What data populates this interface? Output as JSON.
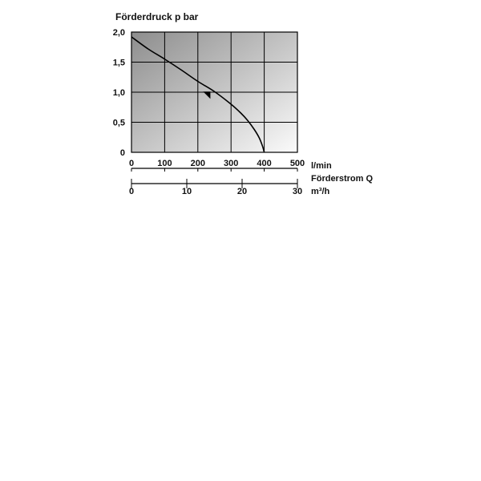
{
  "chart_data": {
    "type": "line",
    "ylabel": "Förderdruck p bar",
    "ylim": [
      0,
      2.0
    ],
    "yticks": [
      {
        "value": 0,
        "label": "0"
      },
      {
        "value": 0.5,
        "label": "0,5"
      },
      {
        "value": 1.0,
        "label": "1,0"
      },
      {
        "value": 1.5,
        "label": "1,5"
      },
      {
        "value": 2.0,
        "label": "2,0"
      }
    ],
    "xlim": [
      0,
      500
    ],
    "xticks": [
      {
        "value": 0,
        "label": "0"
      },
      {
        "value": 100,
        "label": "100"
      },
      {
        "value": 200,
        "label": "200"
      },
      {
        "value": 300,
        "label": "300"
      },
      {
        "value": 400,
        "label": "400"
      },
      {
        "value": 500,
        "label": "500"
      }
    ],
    "xunit": "l/min",
    "xlabel": "Förderstrom Q",
    "x2lim": [
      0,
      30
    ],
    "x2ticks": [
      {
        "value": 0,
        "label": "0"
      },
      {
        "value": 10,
        "label": "10"
      },
      {
        "value": 20,
        "label": "20"
      },
      {
        "value": 30,
        "label": "30"
      }
    ],
    "x2unit": "m³/h",
    "grid": true,
    "series": [
      {
        "x": [
          0,
          50,
          100,
          150,
          200,
          250,
          300,
          330,
          350,
          370,
          385,
          395,
          400
        ],
        "y": [
          1.92,
          1.72,
          1.55,
          1.37,
          1.18,
          1.01,
          0.8,
          0.65,
          0.53,
          0.38,
          0.24,
          0.1,
          0.0
        ],
        "color": "#000000"
      }
    ],
    "marker": {
      "x": 228,
      "y": 0.97,
      "shape": "triangle"
    }
  }
}
